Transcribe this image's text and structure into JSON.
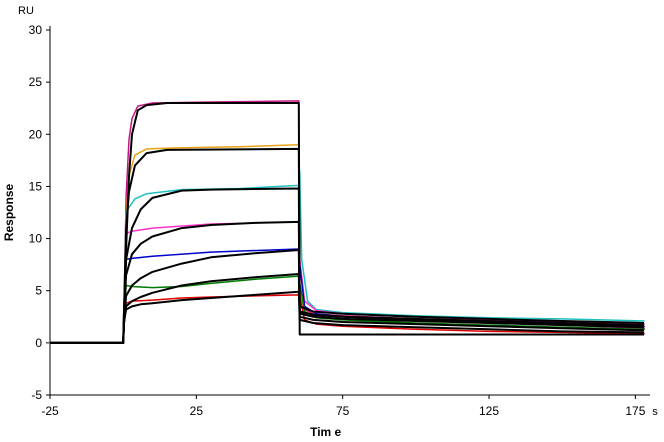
{
  "chart_data": {
    "type": "line",
    "title": "",
    "xlabel": "Tim e",
    "ylabel": "Response",
    "x_unit": "s",
    "y_unit": "RU",
    "xlim": [
      -25,
      180
    ],
    "ylim": [
      -5,
      30
    ],
    "x_ticks": [
      -25,
      25,
      75,
      125,
      175
    ],
    "y_ticks": [
      -5,
      0,
      5,
      10,
      15,
      20,
      25,
      30
    ],
    "grid": false,
    "legend": "none",
    "injection_start": 0,
    "injection_end": 60,
    "series": [
      {
        "color": "#c71585",
        "values": [
          [
            -25,
            0
          ],
          [
            0,
            0
          ],
          [
            0.3,
            3.0
          ],
          [
            1,
            14.0
          ],
          [
            2,
            19.5
          ],
          [
            3,
            21.5
          ],
          [
            5,
            22.7
          ],
          [
            10,
            23.0
          ],
          [
            30,
            23.1
          ],
          [
            60,
            23.2
          ],
          [
            60.3,
            5.0
          ],
          [
            62,
            3.2
          ],
          [
            65,
            2.8
          ],
          [
            75,
            2.6
          ],
          [
            100,
            2.3
          ],
          [
            125,
            2.0
          ],
          [
            150,
            1.7
          ],
          [
            178,
            1.4
          ]
        ]
      },
      {
        "color": "#e8a317",
        "values": [
          [
            -25,
            0
          ],
          [
            0,
            0
          ],
          [
            0.3,
            3.0
          ],
          [
            1,
            12.0
          ],
          [
            2,
            16.0
          ],
          [
            4,
            18.0
          ],
          [
            8,
            18.6
          ],
          [
            20,
            18.7
          ],
          [
            40,
            18.8
          ],
          [
            60,
            19.0
          ],
          [
            60.3,
            5.0
          ],
          [
            62,
            3.0
          ],
          [
            65,
            2.7
          ],
          [
            75,
            2.5
          ],
          [
            100,
            2.2
          ],
          [
            125,
            2.0
          ],
          [
            150,
            1.8
          ],
          [
            178,
            1.6
          ]
        ]
      },
      {
        "color": "#20c0c0",
        "values": [
          [
            -25,
            0
          ],
          [
            0,
            0
          ],
          [
            0.3,
            3.5
          ],
          [
            1,
            12.5
          ],
          [
            2,
            13.0
          ],
          [
            4,
            13.8
          ],
          [
            8,
            14.3
          ],
          [
            20,
            14.7
          ],
          [
            40,
            14.8
          ],
          [
            60,
            15.1
          ],
          [
            60.3,
            16.5
          ],
          [
            61,
            8.0
          ],
          [
            63,
            4.0
          ],
          [
            66,
            3.2
          ],
          [
            75,
            2.9
          ],
          [
            100,
            2.6
          ],
          [
            125,
            2.4
          ],
          [
            150,
            2.3
          ],
          [
            178,
            2.1
          ]
        ]
      },
      {
        "color": "#ff33cc",
        "values": [
          [
            -25,
            0
          ],
          [
            0,
            0
          ],
          [
            0.3,
            3.0
          ],
          [
            1,
            10.5
          ],
          [
            3,
            10.7
          ],
          [
            10,
            11.0
          ],
          [
            30,
            11.4
          ],
          [
            60,
            11.6
          ],
          [
            60.3,
            8.0
          ],
          [
            62,
            4.0
          ],
          [
            66,
            3.1
          ],
          [
            75,
            2.8
          ],
          [
            100,
            2.5
          ],
          [
            125,
            2.2
          ],
          [
            150,
            2.0
          ],
          [
            178,
            1.8
          ]
        ]
      },
      {
        "color": "#0000cc",
        "values": [
          [
            -25,
            0
          ],
          [
            0,
            0
          ],
          [
            0.3,
            2.5
          ],
          [
            1,
            8.0
          ],
          [
            3,
            8.1
          ],
          [
            10,
            8.3
          ],
          [
            30,
            8.7
          ],
          [
            60,
            9.0
          ],
          [
            60.3,
            7.5
          ],
          [
            62,
            3.5
          ],
          [
            66,
            2.8
          ],
          [
            75,
            2.5
          ],
          [
            100,
            2.2
          ],
          [
            125,
            2.0
          ],
          [
            150,
            1.8
          ],
          [
            178,
            1.6
          ]
        ]
      },
      {
        "color": "#007a00",
        "values": [
          [
            -25,
            0
          ],
          [
            0,
            0
          ],
          [
            0.3,
            2.0
          ],
          [
            1,
            5.5
          ],
          [
            3,
            5.4
          ],
          [
            10,
            5.3
          ],
          [
            20,
            5.4
          ],
          [
            30,
            5.7
          ],
          [
            45,
            6.1
          ],
          [
            60,
            6.4
          ],
          [
            60.3,
            5.8
          ],
          [
            62,
            3.0
          ],
          [
            66,
            2.4
          ],
          [
            75,
            2.2
          ],
          [
            100,
            1.9
          ],
          [
            125,
            1.7
          ],
          [
            150,
            1.5
          ],
          [
            178,
            1.3
          ]
        ]
      },
      {
        "color": "#dd0000",
        "values": [
          [
            -25,
            0
          ],
          [
            0,
            0
          ],
          [
            0.3,
            1.5
          ],
          [
            1,
            3.8
          ],
          [
            3,
            4.0
          ],
          [
            10,
            4.1
          ],
          [
            20,
            4.3
          ],
          [
            30,
            4.4
          ],
          [
            45,
            4.5
          ],
          [
            60,
            4.6
          ],
          [
            60.3,
            4.5
          ],
          [
            62,
            2.2
          ],
          [
            66,
            1.8
          ],
          [
            75,
            1.6
          ],
          [
            100,
            1.3
          ],
          [
            125,
            1.1
          ],
          [
            150,
            1.0
          ],
          [
            178,
            0.9
          ]
        ]
      },
      {
        "color": "#000000",
        "values": [
          [
            -25,
            0
          ],
          [
            0,
            0
          ],
          [
            0.3,
            2.0
          ],
          [
            1,
            9.0
          ],
          [
            2,
            16.0
          ],
          [
            3,
            20.0
          ],
          [
            5,
            22.3
          ],
          [
            8,
            22.8
          ],
          [
            15,
            23.0
          ],
          [
            60,
            23.0
          ],
          [
            60.3,
            0.8
          ],
          [
            70,
            0.8
          ],
          [
            100,
            0.8
          ],
          [
            125,
            0.8
          ],
          [
            178,
            0.8
          ]
        ]
      },
      {
        "color": "#000000",
        "values": [
          [
            -25,
            0
          ],
          [
            0,
            0
          ],
          [
            0.3,
            3.0
          ],
          [
            1,
            11.0
          ],
          [
            2,
            14.5
          ],
          [
            4,
            17.0
          ],
          [
            8,
            18.2
          ],
          [
            15,
            18.5
          ],
          [
            60,
            18.6
          ],
          [
            60.3,
            3.0
          ],
          [
            65,
            2.7
          ],
          [
            75,
            2.5
          ],
          [
            100,
            2.2
          ],
          [
            125,
            2.0
          ],
          [
            150,
            1.8
          ],
          [
            178,
            1.5
          ]
        ]
      },
      {
        "color": "#000000",
        "values": [
          [
            -25,
            0
          ],
          [
            0,
            0
          ],
          [
            0.3,
            3.0
          ],
          [
            1,
            8.0
          ],
          [
            3,
            11.0
          ],
          [
            6,
            12.8
          ],
          [
            10,
            13.9
          ],
          [
            20,
            14.6
          ],
          [
            30,
            14.7
          ],
          [
            60,
            14.8
          ],
          [
            60.3,
            3.5
          ],
          [
            65,
            3.0
          ],
          [
            75,
            2.8
          ],
          [
            100,
            2.5
          ],
          [
            125,
            2.3
          ],
          [
            150,
            2.1
          ],
          [
            178,
            1.9
          ]
        ]
      },
      {
        "color": "#000000",
        "values": [
          [
            -25,
            0
          ],
          [
            0,
            0
          ],
          [
            0.3,
            2.5
          ],
          [
            1,
            6.5
          ],
          [
            3,
            8.5
          ],
          [
            6,
            9.5
          ],
          [
            10,
            10.2
          ],
          [
            20,
            11.0
          ],
          [
            30,
            11.3
          ],
          [
            45,
            11.5
          ],
          [
            60,
            11.6
          ],
          [
            60.3,
            3.0
          ],
          [
            65,
            2.7
          ],
          [
            75,
            2.5
          ],
          [
            100,
            2.3
          ],
          [
            125,
            2.1
          ],
          [
            150,
            1.9
          ],
          [
            178,
            1.7
          ]
        ]
      },
      {
        "color": "#000000",
        "values": [
          [
            -25,
            0
          ],
          [
            0,
            0
          ],
          [
            0.3,
            2.0
          ],
          [
            1,
            4.5
          ],
          [
            3,
            5.5
          ],
          [
            6,
            6.2
          ],
          [
            10,
            6.8
          ],
          [
            20,
            7.6
          ],
          [
            30,
            8.2
          ],
          [
            45,
            8.6
          ],
          [
            60,
            8.9
          ],
          [
            60.3,
            2.8
          ],
          [
            65,
            2.5
          ],
          [
            75,
            2.3
          ],
          [
            100,
            2.1
          ],
          [
            125,
            1.9
          ],
          [
            150,
            1.7
          ],
          [
            178,
            1.5
          ]
        ]
      },
      {
        "color": "#000000",
        "values": [
          [
            -25,
            0
          ],
          [
            0,
            0
          ],
          [
            0.3,
            2.0
          ],
          [
            1,
            3.5
          ],
          [
            3,
            4.0
          ],
          [
            6,
            4.4
          ],
          [
            10,
            4.8
          ],
          [
            20,
            5.5
          ],
          [
            30,
            5.9
          ],
          [
            45,
            6.3
          ],
          [
            60,
            6.6
          ],
          [
            60.3,
            2.5
          ],
          [
            65,
            2.2
          ],
          [
            75,
            2.0
          ],
          [
            100,
            1.8
          ],
          [
            125,
            1.6
          ],
          [
            150,
            1.4
          ],
          [
            178,
            1.2
          ]
        ]
      },
      {
        "color": "#000000",
        "values": [
          [
            -25,
            0
          ],
          [
            0,
            0
          ],
          [
            0.3,
            2.0
          ],
          [
            1,
            3.2
          ],
          [
            3,
            3.5
          ],
          [
            6,
            3.7
          ],
          [
            10,
            3.8
          ],
          [
            20,
            4.1
          ],
          [
            30,
            4.3
          ],
          [
            45,
            4.6
          ],
          [
            60,
            4.9
          ],
          [
            60.3,
            2.2
          ],
          [
            65,
            1.9
          ],
          [
            75,
            1.7
          ],
          [
            100,
            1.5
          ],
          [
            125,
            1.3
          ],
          [
            150,
            1.1
          ],
          [
            178,
            1.0
          ]
        ]
      }
    ]
  }
}
